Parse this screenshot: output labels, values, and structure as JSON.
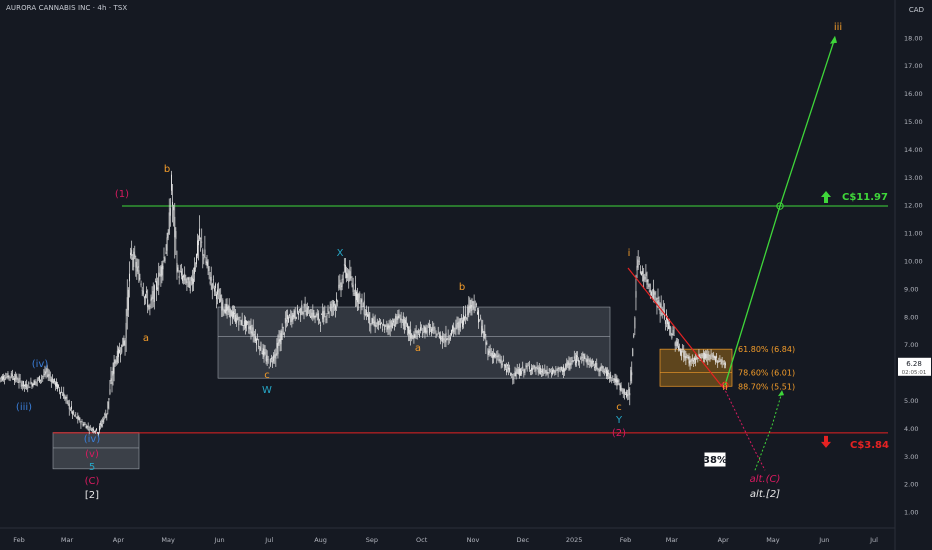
{
  "header": {
    "title": "AURORA CANNABIS INC · 4h · TSX",
    "currency": "CAD"
  },
  "colors": {
    "background": "#151922",
    "candle": "#e8e8e8",
    "resistance": "#3fd63a",
    "support": "#e52222",
    "orange": "#f39c2a",
    "crimson": "#d81b60",
    "blue": "#3a7ed8",
    "teal": "#26a6c6",
    "zone_fill": "#6b7078",
    "fib_fill": "#9b6a1a"
  },
  "chart_data": {
    "type": "candlestick",
    "title": "",
    "xlabel": "",
    "ylabel": "",
    "ylim": [
      0.5,
      19.5
    ],
    "x_ticks": [
      "Feb",
      "Mar",
      "Apr",
      "May",
      "Jun",
      "Jul",
      "Aug",
      "Sep",
      "Oct",
      "Nov",
      "Dec",
      "2025",
      "Feb",
      "Mar",
      "Apr",
      "May",
      "Jun",
      "Jul"
    ],
    "y_ticks": [
      "1.00",
      "2.00",
      "3.00",
      "4.00",
      "5.00",
      "6.00",
      "7.00",
      "8.00",
      "9.00",
      "10.00",
      "11.00",
      "12.00",
      "13.00",
      "14.00",
      "15.00",
      "16.00",
      "17.00",
      "18.00"
    ],
    "price_path": [
      [
        "2024-01-20",
        5.8
      ],
      [
        "2024-01-28",
        5.9
      ],
      [
        "2024-02-05",
        5.5
      ],
      [
        "2024-02-12",
        5.7
      ],
      [
        "2024-02-18",
        6.0
      ],
      [
        "2024-02-23",
        5.6
      ],
      [
        "2024-02-28",
        5.2
      ],
      [
        "2024-03-05",
        4.5
      ],
      [
        "2024-03-10",
        4.2
      ],
      [
        "2024-03-15",
        4.0
      ],
      [
        "2024-03-20",
        3.9
      ],
      [
        "2024-03-25",
        4.6
      ],
      [
        "2024-03-30",
        6.4
      ],
      [
        "2024-04-05",
        7.2
      ],
      [
        "2024-04-09",
        10.3
      ],
      [
        "2024-04-14",
        9.4
      ],
      [
        "2024-04-20",
        8.3
      ],
      [
        "2024-04-26",
        9.5
      ],
      [
        "2024-05-01",
        10.7
      ],
      [
        "2024-05-03",
        12.6
      ],
      [
        "2024-05-07",
        9.6
      ],
      [
        "2024-05-15",
        9.1
      ],
      [
        "2024-05-20",
        10.8
      ],
      [
        "2024-05-27",
        9.3
      ],
      [
        "2024-06-03",
        8.4
      ],
      [
        "2024-06-12",
        7.9
      ],
      [
        "2024-06-20",
        7.6
      ],
      [
        "2024-06-26",
        6.9
      ],
      [
        "2024-07-01",
        6.3
      ],
      [
        "2024-07-05",
        6.7
      ],
      [
        "2024-07-12",
        7.9
      ],
      [
        "2024-07-22",
        8.3
      ],
      [
        "2024-08-01",
        7.9
      ],
      [
        "2024-08-10",
        8.5
      ],
      [
        "2024-08-16",
        9.7
      ],
      [
        "2024-08-24",
        8.7
      ],
      [
        "2024-09-01",
        7.8
      ],
      [
        "2024-09-10",
        7.6
      ],
      [
        "2024-09-18",
        8.0
      ],
      [
        "2024-09-25",
        7.3
      ],
      [
        "2024-10-05",
        7.6
      ],
      [
        "2024-10-15",
        7.2
      ],
      [
        "2024-10-25",
        7.8
      ],
      [
        "2024-11-01",
        8.6
      ],
      [
        "2024-11-05",
        7.9
      ],
      [
        "2024-11-10",
        6.8
      ],
      [
        "2024-11-18",
        6.4
      ],
      [
        "2024-11-25",
        5.9
      ],
      [
        "2024-12-05",
        6.2
      ],
      [
        "2024-12-15",
        6.0
      ],
      [
        "2024-12-25",
        6.1
      ],
      [
        "2025-01-05",
        6.6
      ],
      [
        "2025-01-12",
        6.3
      ],
      [
        "2025-01-18",
        6.1
      ],
      [
        "2025-01-25",
        5.8
      ],
      [
        "2025-01-30",
        5.4
      ],
      [
        "2025-02-03",
        5.1
      ],
      [
        "2025-02-06",
        7.0
      ],
      [
        "2025-02-08",
        9.9
      ],
      [
        "2025-02-14",
        9.3
      ],
      [
        "2025-02-20",
        8.6
      ],
      [
        "2025-02-27",
        7.7
      ],
      [
        "2025-03-05",
        6.9
      ],
      [
        "2025-03-12",
        6.4
      ],
      [
        "2025-03-20",
        6.6
      ],
      [
        "2025-03-28",
        6.5
      ],
      [
        "2025-04-03",
        6.3
      ]
    ],
    "lines": [
      {
        "name": "",
        "value": 11.97
      },
      {
        "name": "",
        "value": 3.84
      }
    ],
    "price_labels": [
      "C$11.97",
      "C$3.84"
    ],
    "fib_levels": [
      {
        "label": "61.80% (6.84)",
        "value": 6.84
      },
      {
        "label": "78.60% (6.01)",
        "value": 6.01
      },
      {
        "label": "88.70% (5.51)",
        "value": 5.51
      }
    ],
    "projection_target": 18.0,
    "alt_target": 2.5,
    "last_price": "6.28",
    "countdown": "02:05:01",
    "probability_badge": "38%",
    "wave_labels": [
      {
        "text": "(iv)",
        "color": "blue"
      },
      {
        "text": "(iii)",
        "color": "blue"
      },
      {
        "text": "(iv)",
        "color": "blue"
      },
      {
        "text": "(v)",
        "color": "crimson"
      },
      {
        "text": "5",
        "color": "teal"
      },
      {
        "text": "(C)",
        "color": "crimson"
      },
      {
        "text": "[2]",
        "color": "white"
      },
      {
        "text": "(1)",
        "color": "crimson"
      },
      {
        "text": "b",
        "color": "orange"
      },
      {
        "text": "a",
        "color": "orange"
      },
      {
        "text": "c",
        "color": "orange"
      },
      {
        "text": "W",
        "color": "teal"
      },
      {
        "text": "X",
        "color": "teal"
      },
      {
        "text": "b",
        "color": "orange"
      },
      {
        "text": "a",
        "color": "orange"
      },
      {
        "text": "c",
        "color": "orange"
      },
      {
        "text": "Y",
        "color": "teal"
      },
      {
        "text": "(2)",
        "color": "crimson"
      },
      {
        "text": "i",
        "color": "orange"
      },
      {
        "text": "ii",
        "color": "orange"
      },
      {
        "text": "iii",
        "color": "orange"
      },
      {
        "text": "alt.(C)",
        "color": "crimson"
      },
      {
        "text": "alt.[2]",
        "color": "white"
      }
    ]
  }
}
